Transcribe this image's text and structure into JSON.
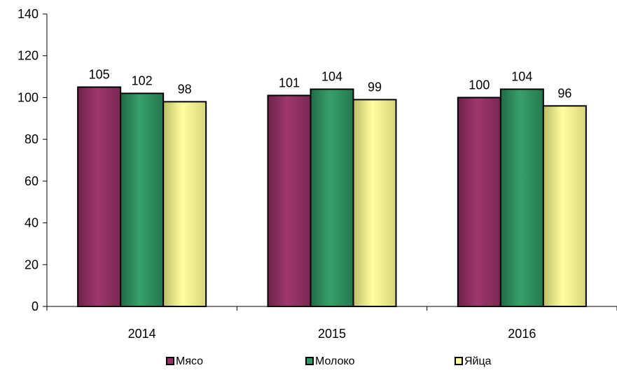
{
  "chart_data": {
    "type": "bar",
    "title": "",
    "xlabel": "",
    "ylabel": "",
    "categories": [
      "2014",
      "2015",
      "2016"
    ],
    "series": [
      {
        "name": "Мясо",
        "values": [
          105,
          101,
          100
        ],
        "color": "#993366"
      },
      {
        "name": "Молоко",
        "values": [
          102,
          104,
          104
        ],
        "color": "#339966"
      },
      {
        "name": "Яйца",
        "values": [
          98,
          99,
          96
        ],
        "color": "#ffff99"
      }
    ],
    "ylim": [
      0,
      140
    ],
    "yticks": [
      "0",
      "20",
      "40",
      "60",
      "80",
      "100",
      "120",
      "140"
    ],
    "grid": false,
    "legend_position": "bottom",
    "data_labels": true
  }
}
